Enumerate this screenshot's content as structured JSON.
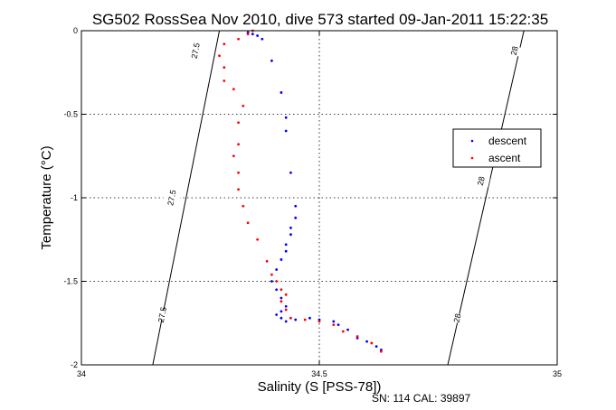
{
  "chart_data": {
    "type": "scatter",
    "title": "SG502 RossSea Nov 2010, dive 573 started 09-Jan-2011 15:22:35",
    "xlabel": "Salinity (S [PSS-78])",
    "ylabel": "Temperature (°C)",
    "xlim": [
      34,
      35
    ],
    "ylim": [
      -2,
      0
    ],
    "x_ticks": [
      34,
      34.5,
      35
    ],
    "x_tick_labels": [
      "34",
      "34.5",
      "35"
    ],
    "y_ticks": [
      -2,
      -1.5,
      -1,
      -0.5,
      0
    ],
    "y_tick_labels": [
      "-2",
      "-1.5",
      "-1",
      "-0.5",
      "0"
    ],
    "grid": true,
    "legend_position": "right",
    "footer": "SN: 114  CAL: 39897",
    "series": [
      {
        "name": "descent",
        "color": "#0000ff",
        "marker": "dot",
        "points": [
          [
            34.35,
            -0.01
          ],
          [
            34.36,
            -0.02
          ],
          [
            34.37,
            -0.03
          ],
          [
            34.38,
            -0.05
          ],
          [
            34.4,
            -0.18
          ],
          [
            34.42,
            -0.37
          ],
          [
            34.43,
            -0.52
          ],
          [
            34.43,
            -0.6
          ],
          [
            34.44,
            -0.85
          ],
          [
            34.45,
            -1.05
          ],
          [
            34.45,
            -1.12
          ],
          [
            34.44,
            -1.18
          ],
          [
            34.44,
            -1.22
          ],
          [
            34.43,
            -1.28
          ],
          [
            34.43,
            -1.32
          ],
          [
            34.42,
            -1.37
          ],
          [
            34.41,
            -1.43
          ],
          [
            34.4,
            -1.5
          ],
          [
            34.41,
            -1.55
          ],
          [
            34.42,
            -1.6
          ],
          [
            34.43,
            -1.65
          ],
          [
            34.42,
            -1.68
          ],
          [
            34.41,
            -1.7
          ],
          [
            34.42,
            -1.72
          ],
          [
            34.43,
            -1.74
          ],
          [
            34.45,
            -1.73
          ],
          [
            34.48,
            -1.72
          ],
          [
            34.5,
            -1.73
          ],
          [
            34.53,
            -1.74
          ],
          [
            34.54,
            -1.76
          ],
          [
            34.56,
            -1.79
          ],
          [
            34.58,
            -1.84
          ],
          [
            34.6,
            -1.86
          ],
          [
            34.62,
            -1.89
          ],
          [
            34.63,
            -1.91
          ]
        ]
      },
      {
        "name": "ascent",
        "color": "#ff0000",
        "marker": "dot",
        "points": [
          [
            34.36,
            0
          ],
          [
            34.35,
            -0.02
          ],
          [
            34.33,
            -0.05
          ],
          [
            34.3,
            -0.08
          ],
          [
            34.29,
            -0.15
          ],
          [
            34.3,
            -0.22
          ],
          [
            34.3,
            -0.3
          ],
          [
            34.32,
            -0.35
          ],
          [
            34.34,
            -0.45
          ],
          [
            34.33,
            -0.55
          ],
          [
            34.33,
            -0.68
          ],
          [
            34.32,
            -0.75
          ],
          [
            34.33,
            -0.85
          ],
          [
            34.33,
            -0.95
          ],
          [
            34.34,
            -1.05
          ],
          [
            34.35,
            -1.15
          ],
          [
            34.37,
            -1.25
          ],
          [
            34.39,
            -1.38
          ],
          [
            34.4,
            -1.46
          ],
          [
            34.41,
            -1.5
          ],
          [
            34.42,
            -1.55
          ],
          [
            34.43,
            -1.58
          ],
          [
            34.42,
            -1.62
          ],
          [
            34.43,
            -1.67
          ],
          [
            34.44,
            -1.72
          ],
          [
            34.47,
            -1.73
          ],
          [
            34.5,
            -1.74
          ],
          [
            34.53,
            -1.76
          ],
          [
            34.55,
            -1.8
          ],
          [
            34.58,
            -1.83
          ],
          [
            34.61,
            -1.87
          ],
          [
            34.63,
            -1.92
          ]
        ]
      }
    ],
    "density_contours": [
      {
        "value": "27.5",
        "color": "#000000",
        "points": [
          [
            34.15,
            -2
          ],
          [
            34.29,
            0
          ]
        ],
        "labels": [
          {
            "x": 34.17,
            "y": -1.7,
            "text": "27.5"
          },
          {
            "x": 34.19,
            "y": -1.0,
            "text": "27.5"
          },
          {
            "x": 34.24,
            "y": -0.12,
            "text": "27.5"
          }
        ]
      },
      {
        "value": "28",
        "color": "#000000",
        "points": [
          [
            34.77,
            -2
          ],
          [
            34.93,
            0
          ]
        ],
        "labels": [
          {
            "x": 34.79,
            "y": -1.72,
            "text": "28"
          },
          {
            "x": 34.84,
            "y": -0.9,
            "text": "28"
          },
          {
            "x": 34.91,
            "y": -0.12,
            "text": "28"
          }
        ]
      }
    ]
  }
}
